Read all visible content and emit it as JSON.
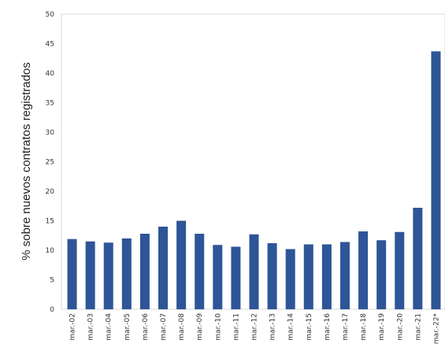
{
  "chart_data": {
    "type": "bar",
    "title": "",
    "xlabel": "",
    "ylabel": "% sobre nuevos contratos registrados",
    "categories": [
      "mar.-02",
      "mar.-03",
      "mar.-04",
      "mar.-05",
      "mar.-06",
      "mar.-07",
      "mar.-08",
      "mar.-09",
      "mar.-10",
      "mar.-11",
      "mar.-12",
      "mar.-13",
      "mar.-14",
      "mar.-15",
      "mar.-16",
      "mar.-17",
      "mar.-18",
      "mar.-19",
      "mar.-20",
      "mar.-21",
      "mar.-22*"
    ],
    "values": [
      11.9,
      11.5,
      11.3,
      12.0,
      12.8,
      14.0,
      15.0,
      12.8,
      10.9,
      10.6,
      12.7,
      11.2,
      10.2,
      11.0,
      11.0,
      11.4,
      13.2,
      11.7,
      13.1,
      17.2,
      43.7
    ],
    "ylim": [
      0,
      50
    ],
    "yticks": [
      0,
      5,
      10,
      15,
      20,
      25,
      30,
      35,
      40,
      45,
      50
    ],
    "bar_color": "#2e5597",
    "grid": false,
    "legend": "none"
  }
}
